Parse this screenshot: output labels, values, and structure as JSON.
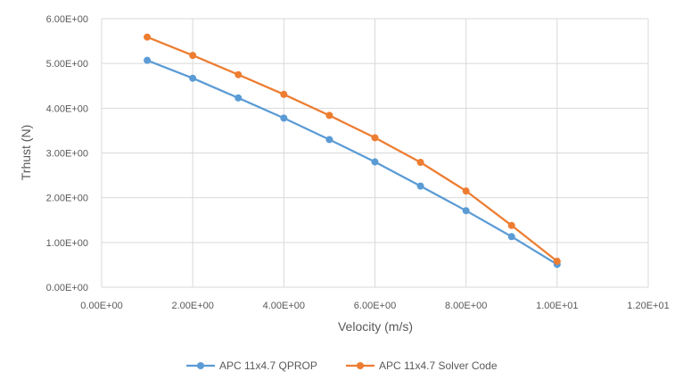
{
  "chart_data": {
    "type": "scatter",
    "title": "",
    "xlabel": "Velocity (m/s)",
    "ylabel": "Trhust (N)",
    "xlim": [
      0,
      12
    ],
    "ylim": [
      0,
      6
    ],
    "x_ticks": [
      {
        "value": 0,
        "label": "0.00E+00"
      },
      {
        "value": 2,
        "label": "2.00E+00"
      },
      {
        "value": 4,
        "label": "4.00E+00"
      },
      {
        "value": 6,
        "label": "6.00E+00"
      },
      {
        "value": 8,
        "label": "8.00E+00"
      },
      {
        "value": 10,
        "label": "1.00E+01"
      },
      {
        "value": 12,
        "label": "1.20E+01"
      }
    ],
    "y_ticks": [
      {
        "value": 0,
        "label": "0.00E+00"
      },
      {
        "value": 1,
        "label": "1.00E+00"
      },
      {
        "value": 2,
        "label": "2.00E+00"
      },
      {
        "value": 3,
        "label": "3.00E+00"
      },
      {
        "value": 4,
        "label": "4.00E+00"
      },
      {
        "value": 5,
        "label": "5.00E+00"
      },
      {
        "value": 6,
        "label": "6.00E+00"
      }
    ],
    "x_gridlines": true,
    "y_gridlines": true,
    "legend_position": "bottom",
    "series": [
      {
        "name": "APC 11x4.7 QPROP",
        "color": "#5B9BD5",
        "x": [
          1,
          2,
          3,
          4,
          5,
          6,
          7,
          8,
          9,
          10
        ],
        "y": [
          5.07,
          4.67,
          4.23,
          3.78,
          3.3,
          2.8,
          2.26,
          1.71,
          1.13,
          0.51
        ]
      },
      {
        "name": "APC 11x4.7 Solver Code",
        "color": "#ED7D31",
        "x": [
          1,
          2,
          3,
          4,
          5,
          6,
          7,
          8,
          9,
          10
        ],
        "y": [
          5.59,
          5.18,
          4.75,
          4.31,
          3.84,
          3.34,
          2.79,
          2.15,
          1.38,
          0.58
        ]
      }
    ]
  }
}
